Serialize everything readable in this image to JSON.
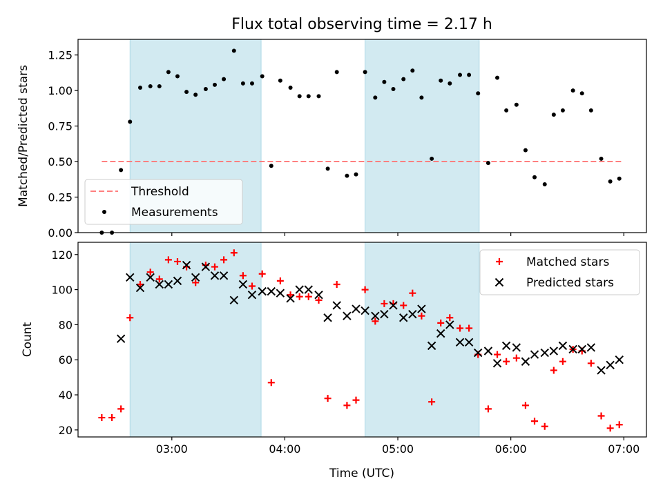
{
  "chart_data": [
    {
      "type": "scatter",
      "title": "Flux total observing time = 2.17 h",
      "xlabel": "",
      "ylabel": "Matched/Predicted stars",
      "x_unit": "hours UTC",
      "xlim": [
        2.17,
        7.2
      ],
      "ylim": [
        0.0,
        1.36
      ],
      "yticks": [
        0.0,
        0.25,
        0.5,
        0.75,
        1.0,
        1.25
      ],
      "ytick_labels": [
        "0.00",
        "0.25",
        "0.50",
        "0.75",
        "1.00",
        "1.25"
      ],
      "xticks": [
        3,
        4,
        5,
        6,
        7
      ],
      "xtick_labels": [
        "",
        "",
        "",
        "",
        ""
      ],
      "shaded_intervals": [
        [
          2.63,
          3.79
        ],
        [
          4.71,
          5.72
        ]
      ],
      "shade_color": "#add8e6",
      "legend_position": "lower-left",
      "threshold": {
        "name": "Threshold",
        "value": 0.5,
        "x_range": [
          2.38,
          6.98
        ],
        "color": "#ff7f7f",
        "style": "dashed"
      },
      "series": [
        {
          "name": "Measurements",
          "marker": "dot",
          "color": "#000000",
          "x": [
            2.38,
            2.47,
            2.55,
            2.63,
            2.72,
            2.81,
            2.89,
            2.97,
            3.05,
            3.13,
            3.21,
            3.3,
            3.38,
            3.46,
            3.55,
            3.63,
            3.71,
            3.8,
            3.88,
            3.96,
            4.05,
            4.13,
            4.21,
            4.3,
            4.38,
            4.46,
            4.55,
            4.63,
            4.71,
            4.8,
            4.88,
            4.96,
            5.05,
            5.13,
            5.21,
            5.3,
            5.38,
            5.46,
            5.55,
            5.63,
            5.71,
            5.8,
            5.88,
            5.96,
            6.05,
            6.13,
            6.21,
            6.3,
            6.38,
            6.46,
            6.55,
            6.63,
            6.71,
            6.8,
            6.88,
            6.96
          ],
          "y": [
            0.0,
            0.0,
            0.44,
            0.78,
            1.02,
            1.03,
            1.03,
            1.13,
            1.1,
            0.99,
            0.97,
            1.01,
            1.04,
            1.08,
            1.28,
            1.05,
            1.05,
            1.1,
            0.47,
            1.07,
            1.02,
            0.96,
            0.96,
            0.96,
            0.45,
            1.13,
            0.4,
            0.41,
            1.13,
            0.95,
            1.06,
            1.01,
            1.08,
            1.14,
            0.95,
            0.52,
            1.07,
            1.05,
            1.11,
            1.11,
            0.98,
            0.49,
            1.09,
            0.86,
            0.9,
            0.58,
            0.39,
            0.34,
            0.83,
            0.86,
            1.0,
            0.98,
            0.86,
            0.52,
            0.36,
            0.38
          ]
        }
      ]
    },
    {
      "type": "scatter",
      "title": "",
      "xlabel": "Time (UTC)",
      "ylabel": "Count",
      "x_unit": "hours UTC",
      "xlim": [
        2.17,
        7.2
      ],
      "ylim": [
        16,
        127
      ],
      "yticks": [
        20,
        40,
        60,
        80,
        100,
        120
      ],
      "ytick_labels": [
        "20",
        "40",
        "60",
        "80",
        "100",
        "120"
      ],
      "xticks": [
        3,
        4,
        5,
        6,
        7
      ],
      "xtick_labels": [
        "03:00",
        "04:00",
        "05:00",
        "06:00",
        "07:00"
      ],
      "shaded_intervals": [
        [
          2.63,
          3.79
        ],
        [
          4.71,
          5.72
        ]
      ],
      "shade_color": "#add8e6",
      "legend_position": "upper-right",
      "series": [
        {
          "name": "Matched stars",
          "marker": "plus",
          "color": "#ff0000",
          "x": [
            2.38,
            2.47,
            2.55,
            2.63,
            2.72,
            2.81,
            2.89,
            2.97,
            3.05,
            3.13,
            3.21,
            3.3,
            3.38,
            3.46,
            3.55,
            3.63,
            3.71,
            3.8,
            3.88,
            3.96,
            4.05,
            4.13,
            4.21,
            4.3,
            4.38,
            4.46,
            4.55,
            4.63,
            4.71,
            4.8,
            4.88,
            4.96,
            5.05,
            5.13,
            5.21,
            5.3,
            5.38,
            5.46,
            5.55,
            5.63,
            5.71,
            5.8,
            5.88,
            5.96,
            6.05,
            6.13,
            6.21,
            6.3,
            6.38,
            6.46,
            6.55,
            6.63,
            6.71,
            6.8,
            6.88,
            6.96
          ],
          "y": [
            27,
            27,
            32,
            84,
            103,
            110,
            106,
            117,
            116,
            113,
            104,
            114,
            113,
            117,
            121,
            108,
            102,
            109,
            47,
            105,
            97,
            96,
            96,
            94,
            38,
            103,
            34,
            37,
            100,
            82,
            92,
            92,
            91,
            98,
            85,
            36,
            81,
            84,
            78,
            78,
            63,
            32,
            63,
            59,
            61,
            34,
            25,
            22,
            54,
            59,
            66,
            65,
            58,
            28,
            21,
            23
          ]
        },
        {
          "name": "Predicted stars",
          "marker": "x",
          "color": "#000000",
          "x": [
            2.55,
            2.63,
            2.72,
            2.81,
            2.89,
            2.97,
            3.05,
            3.13,
            3.21,
            3.3,
            3.38,
            3.46,
            3.55,
            3.63,
            3.71,
            3.8,
            3.88,
            3.96,
            4.05,
            4.13,
            4.21,
            4.3,
            4.38,
            4.46,
            4.55,
            4.63,
            4.71,
            4.8,
            4.88,
            4.96,
            5.05,
            5.13,
            5.21,
            5.3,
            5.38,
            5.46,
            5.55,
            5.63,
            5.71,
            5.8,
            5.88,
            5.96,
            6.05,
            6.13,
            6.21,
            6.3,
            6.38,
            6.46,
            6.55,
            6.63,
            6.71,
            6.8,
            6.88,
            6.96
          ],
          "y": [
            72,
            107,
            101,
            107,
            103,
            103,
            105,
            114,
            107,
            113,
            108,
            108,
            94,
            103,
            97,
            99,
            99,
            98,
            95,
            100,
            100,
            97,
            84,
            91,
            85,
            89,
            88,
            85,
            86,
            91,
            84,
            86,
            89,
            68,
            75,
            80,
            70,
            70,
            64,
            65,
            58,
            68,
            67,
            59,
            63,
            64,
            65,
            68,
            66,
            66,
            67,
            54,
            57,
            60
          ]
        }
      ]
    }
  ]
}
